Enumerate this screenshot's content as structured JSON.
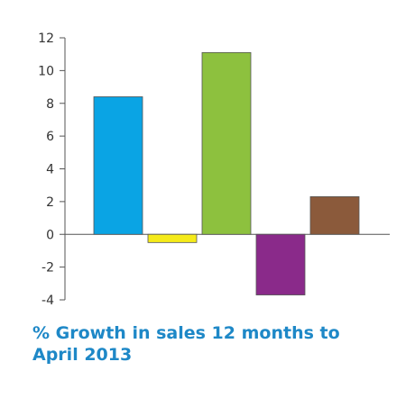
{
  "chart_data": {
    "type": "bar",
    "title": "% Growth in sales 12 months to April 2013",
    "title_lines": [
      "% Growth in sales 12 months to",
      "April 2013"
    ],
    "xlabel": "",
    "ylabel": "",
    "ylim": [
      -4,
      12
    ],
    "yticks": [
      12,
      10,
      8,
      6,
      4,
      2,
      0,
      -2,
      -4
    ],
    "grid": false,
    "legend": "none",
    "bars": [
      {
        "value": 8.4,
        "color": "#0aa4e4"
      },
      {
        "value": -0.5,
        "color": "#f5ea1a"
      },
      {
        "value": 11.1,
        "color": "#8dc13e"
      },
      {
        "value": -3.7,
        "color": "#8a2a8a"
      },
      {
        "value": 2.3,
        "color": "#8b5a3b"
      }
    ],
    "title_color": "#1e88c7"
  }
}
